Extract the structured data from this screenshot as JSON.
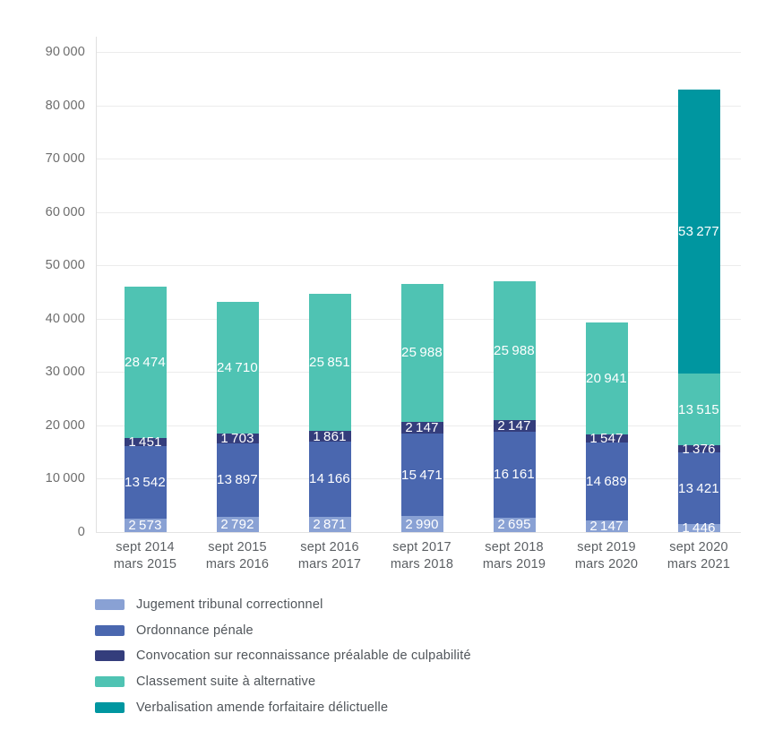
{
  "page": {
    "background": "#ffffff"
  },
  "chart_data": {
    "type": "bar",
    "stacked": true,
    "title": "",
    "grid": true,
    "legend_position": "bottom-left",
    "categories": [
      [
        "sept 2014",
        "mars 2015"
      ],
      [
        "sept 2015",
        "mars 2016"
      ],
      [
        "sept 2016",
        "mars 2017"
      ],
      [
        "sept 2017",
        "mars 2018"
      ],
      [
        "sept 2018",
        "mars 2019"
      ],
      [
        "sept 2019",
        "mars 2020"
      ],
      [
        "sept 2020",
        "mars 2021"
      ]
    ],
    "series": [
      {
        "name": "Jugement tribunal correctionnel",
        "color": "#89A1D4",
        "values": [
          2573,
          2792,
          2871,
          2990,
          2695,
          2147,
          1446
        ],
        "labels": [
          "2 573",
          "2 792",
          "2 871",
          "2 990",
          "2 695",
          "2 147",
          "1 446"
        ]
      },
      {
        "name": "Ordonnance pénale",
        "color": "#4A67AF",
        "values": [
          13542,
          13897,
          14166,
          15471,
          16161,
          14689,
          13421
        ],
        "labels": [
          "13 542",
          "13 897",
          "14 166",
          "15 471",
          "16 161",
          "14 689",
          "13 421"
        ]
      },
      {
        "name": "Convocation sur reconnaissance préalable de culpabilité",
        "color": "#343D7C",
        "values": [
          1451,
          1703,
          1861,
          2147,
          2147,
          1547,
          1376
        ],
        "labels": [
          "1 451",
          "1 703",
          "1 861",
          "2 147",
          "2 147",
          "1 547",
          "1 376"
        ]
      },
      {
        "name": "Classement suite à alternative",
        "color": "#4FC3B3",
        "values": [
          28474,
          24710,
          25851,
          25988,
          25988,
          20941,
          13515
        ],
        "labels": [
          "28 474",
          "24 710",
          "25 851",
          "25 988",
          "25 988",
          "20 941",
          "13 515"
        ]
      },
      {
        "name": "Verbalisation amende forfaitaire délictuelle",
        "color": "#0096A0",
        "values": [
          0,
          0,
          0,
          0,
          0,
          0,
          53277
        ],
        "labels": [
          "",
          "",
          "",
          "",
          "",
          "",
          "53 277"
        ]
      }
    ],
    "y_axis": {
      "ylim": [
        0,
        90000
      ],
      "tick_values": [
        0,
        10000,
        20000,
        30000,
        40000,
        50000,
        60000,
        70000,
        80000,
        90000
      ],
      "tick_labels": [
        "0",
        "10 000",
        "20 000",
        "30 000",
        "40 000",
        "50 000",
        "60 000",
        "70 000",
        "80 000",
        "90 000"
      ]
    }
  }
}
